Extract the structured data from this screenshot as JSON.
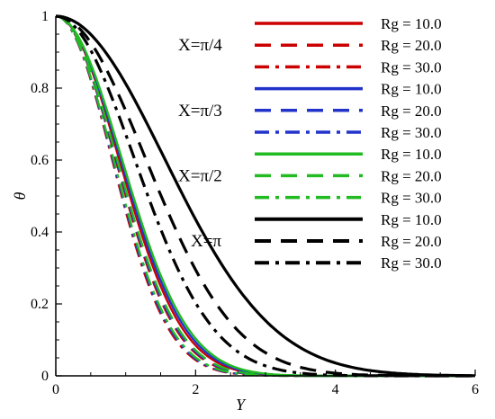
{
  "chart_data": {
    "type": "line",
    "title": "",
    "xlabel": "Y",
    "ylabel": "θ",
    "xlim": [
      0,
      6
    ],
    "ylim": [
      0,
      1
    ],
    "xticks": [
      "0",
      "2",
      "4",
      "6"
    ],
    "yticks": [
      "0",
      "0.2",
      "0.4",
      "0.6",
      "0.8",
      "1"
    ],
    "grid": false,
    "legend_position": "top-right",
    "groups": [
      {
        "label": "X=π/4",
        "color": "#cc0000",
        "decay": [
          0.9,
          0.85,
          0.8
        ]
      },
      {
        "label": "X=π/3",
        "color": "#2233cc",
        "decay": [
          0.92,
          0.86,
          0.81
        ]
      },
      {
        "label": "X=π/2",
        "color": "#22bb22",
        "decay": [
          0.94,
          0.87,
          0.82
        ]
      },
      {
        "label": "X=π",
        "color": "#000000",
        "decay": [
          1.55,
          1.28,
          1.12
        ]
      }
    ],
    "series_labels": [
      "Rg = 10.0",
      "Rg = 20.0",
      "Rg = 30.0"
    ],
    "styles": [
      "solid",
      "dash",
      "dashdot"
    ]
  }
}
